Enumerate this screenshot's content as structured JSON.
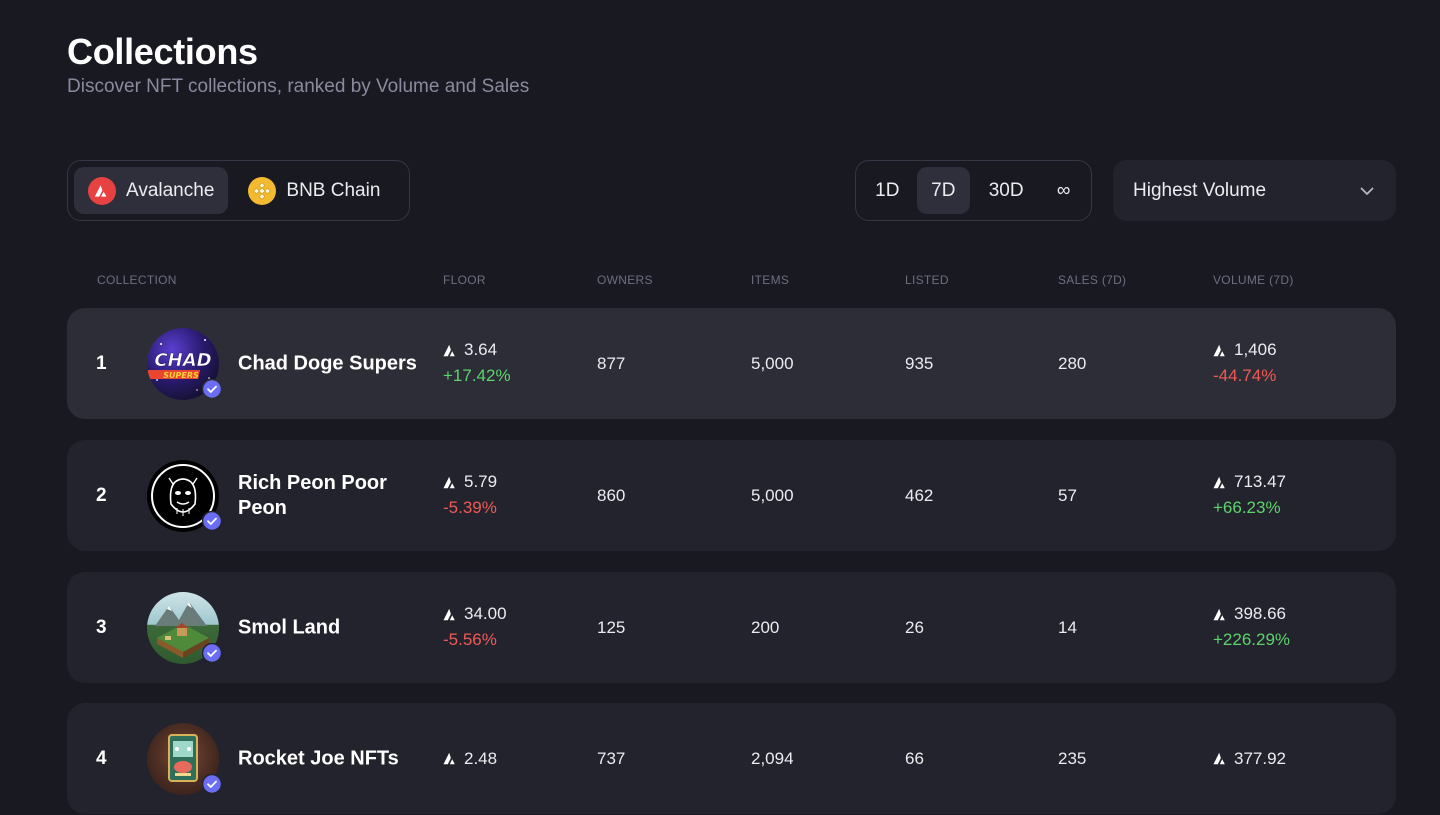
{
  "header": {
    "title": "Collections",
    "subtitle": "Discover NFT collections, ranked by Volume and Sales"
  },
  "chains": [
    {
      "label": "Avalanche",
      "icon": "avalanche-icon",
      "active": true,
      "color": "#e84142"
    },
    {
      "label": "BNB Chain",
      "icon": "bnb-icon",
      "active": false,
      "color": "#f3ba2f"
    }
  ],
  "periods": [
    {
      "label": "1D",
      "active": false
    },
    {
      "label": "7D",
      "active": true
    },
    {
      "label": "30D",
      "active": false
    },
    {
      "label": "∞",
      "active": false
    }
  ],
  "sort": {
    "value": "Highest Volume",
    "icon": "chevron-down-icon"
  },
  "table": {
    "columns": {
      "collection": "COLLECTION",
      "floor": "FLOOR",
      "owners": "OWNERS",
      "items": "ITEMS",
      "listed": "LISTED",
      "sales": "SALES (7D)",
      "volume": "VOLUME (7D)"
    },
    "rows": [
      {
        "rank": "1",
        "name": "Chad Doge Supers",
        "avatar_text": "CHAD",
        "avatar_subtext": "SUPERS",
        "floor": "3.64",
        "floor_change": "+17.42%",
        "floor_trend": "up",
        "owners": "877",
        "items": "5,000",
        "listed": "935",
        "sales": "280",
        "volume": "1,406",
        "volume_change": "-44.74%",
        "volume_trend": "down"
      },
      {
        "rank": "2",
        "name": "Rich Peon Poor Peon",
        "floor": "5.79",
        "floor_change": "-5.39%",
        "floor_trend": "down",
        "owners": "860",
        "items": "5,000",
        "listed": "462",
        "sales": "57",
        "volume": "713.47",
        "volume_change": "+66.23%",
        "volume_trend": "up"
      },
      {
        "rank": "3",
        "name": "Smol Land",
        "floor": "34.00",
        "floor_change": "-5.56%",
        "floor_trend": "down",
        "owners": "125",
        "items": "200",
        "listed": "26",
        "sales": "14",
        "volume": "398.66",
        "volume_change": "+226.29%",
        "volume_trend": "up"
      },
      {
        "rank": "4",
        "name": "Rocket Joe NFTs",
        "floor": "2.48",
        "floor_change": "",
        "owners": "737",
        "items": "2,094",
        "listed": "66",
        "sales": "235",
        "volume": "377.92",
        "volume_change": ""
      }
    ]
  },
  "colors": {
    "up": "#5bd46b",
    "down": "#ef5a55",
    "verified": "#6b6ef5",
    "background": "#191922",
    "row": "#23232d"
  }
}
